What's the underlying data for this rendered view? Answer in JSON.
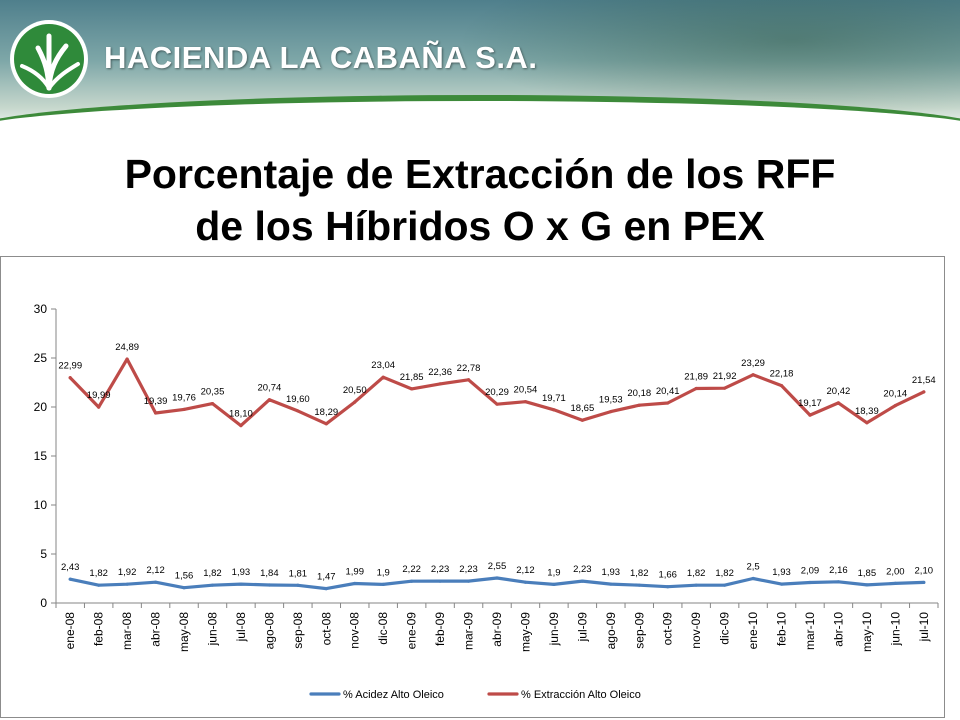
{
  "header": {
    "company_name": "HACIENDA LA CABAÑA S.A."
  },
  "slide": {
    "title_line1": "Porcentaje de Extracción de los RFF",
    "title_line2": "de los Híbridos  O x G en PEX"
  },
  "chart_data": {
    "type": "line",
    "categories": [
      "ene-08",
      "feb-08",
      "mar-08",
      "abr-08",
      "may-08",
      "jun-08",
      "jul-08",
      "ago-08",
      "sep-08",
      "oct-08",
      "nov-08",
      "dic-08",
      "ene-09",
      "feb-09",
      "mar-09",
      "abr-09",
      "may-09",
      "jun-09",
      "jul-09",
      "ago-09",
      "sep-09",
      "oct-09",
      "nov-09",
      "dic-09",
      "ene-10",
      "feb-10",
      "mar-10",
      "abr-10",
      "may-10",
      "jun-10",
      "jul-10"
    ],
    "series": [
      {
        "name": "% Acidez Alto Oleico",
        "color": "#4a7ebb",
        "values": [
          2.43,
          1.82,
          1.92,
          2.12,
          1.56,
          1.82,
          1.93,
          1.84,
          1.81,
          1.47,
          1.99,
          1.9,
          2.22,
          2.23,
          2.23,
          2.55,
          2.12,
          1.9,
          2.23,
          1.93,
          1.82,
          1.66,
          1.82,
          1.82,
          2.5,
          1.93,
          2.09,
          2.16,
          1.85,
          2.0,
          2.1
        ],
        "labels": [
          "2,43",
          "1,82",
          "1,92",
          "2,12",
          "1,56",
          "1,82",
          "1,93",
          "1,84",
          "1,81",
          "1,47",
          "1,99",
          "1,9",
          "2,22",
          "2,23",
          "2,23",
          "2,55",
          "2,12",
          "1,9",
          "2,23",
          "1,93",
          "1,82",
          "1,66",
          "1,82",
          "1,82",
          "2,5",
          "1,93",
          "2,09",
          "2,16",
          "1,85",
          "2,00",
          "2,10"
        ]
      },
      {
        "name": "% Extracción Alto Oleico",
        "color": "#be4b48",
        "values": [
          22.99,
          19.99,
          24.89,
          19.39,
          19.76,
          20.35,
          18.1,
          20.74,
          19.6,
          18.29,
          20.5,
          23.04,
          21.85,
          22.36,
          22.78,
          20.29,
          20.54,
          19.71,
          18.65,
          19.53,
          20.18,
          20.41,
          21.89,
          21.92,
          23.29,
          22.18,
          19.17,
          20.42,
          18.39,
          20.14,
          21.54
        ],
        "labels": [
          "22,99",
          "19,99",
          "24,89",
          "19,39",
          "19,76",
          "20,35",
          "18,10",
          "20,74",
          "19,60",
          "18,29",
          "20,50",
          "23,04",
          "21,85",
          "22,36",
          "22,78",
          "20,29",
          "20,54",
          "19,71",
          "18,65",
          "19,53",
          "20,18",
          "20,41",
          "21,89",
          "21,92",
          "23,29",
          "22,18",
          "19,17",
          "20,42",
          "18,39",
          "20,14",
          "21,54"
        ]
      }
    ],
    "ylim": [
      0,
      30
    ],
    "yticks": [
      0,
      5,
      10,
      15,
      20,
      25,
      30
    ],
    "ytick_labels": [
      "0",
      "5",
      "10",
      "15",
      "20",
      "25",
      "30"
    ],
    "grid": false,
    "legend_position": "bottom",
    "title": "",
    "xlabel": "",
    "ylabel": ""
  }
}
